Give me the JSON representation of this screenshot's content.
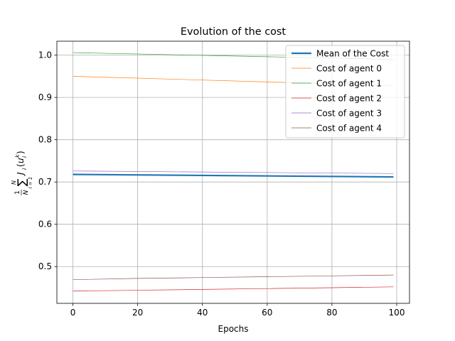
{
  "chart_data": {
    "type": "line",
    "title": "Evolution of the cost",
    "xlabel": "Epochs",
    "ylabel_parts": {
      "frac_num": "1",
      "frac_den": "N",
      "sum_upper": "N",
      "sum_symbol": "∑",
      "sum_lower": "i = 1",
      "function": "J",
      "function_sub": "i",
      "open_paren": "(",
      "argument": "u",
      "argument_sub": "i",
      "argument_sup": "k",
      "close_paren": ")"
    },
    "xlim": [
      -4.95,
      103.95
    ],
    "ylim": [
      0.413,
      1.033
    ],
    "x_ticks": [
      0,
      20,
      40,
      60,
      80,
      100
    ],
    "y_ticks": [
      0.5,
      0.6,
      0.7,
      0.8,
      0.9,
      1.0
    ],
    "y_tick_labels": [
      "0.5",
      "0.6",
      "0.7",
      "0.8",
      "0.9",
      "1.0"
    ],
    "grid": true,
    "legend_position": "top-right",
    "series": [
      {
        "name": "Mean of the Cost",
        "color": "#1f77b4",
        "width": "thick",
        "x": [
          0,
          99
        ],
        "y": [
          0.718,
          0.712
        ]
      },
      {
        "name": "Cost of agent 0",
        "color": "#ff7f0e",
        "width": "thin",
        "x": [
          0,
          99
        ],
        "y": [
          0.95,
          0.928
        ]
      },
      {
        "name": "Cost of agent 1",
        "color": "#2ca02c",
        "width": "thin",
        "x": [
          0,
          99
        ],
        "y": [
          1.006,
          0.99
        ]
      },
      {
        "name": "Cost of agent 2",
        "color": "#d62728",
        "width": "thin",
        "x": [
          0,
          20,
          40,
          60,
          80,
          99
        ],
        "y": [
          0.442,
          0.444,
          0.446,
          0.448,
          0.45,
          0.452
        ]
      },
      {
        "name": "Cost of agent 3",
        "color": "#9467bd",
        "width": "thin",
        "x": [
          0,
          99
        ],
        "y": [
          0.726,
          0.72
        ]
      },
      {
        "name": "Cost of agent 4",
        "color": "#8c564b",
        "width": "thin",
        "x": [
          0,
          20,
          40,
          60,
          80,
          99
        ],
        "y": [
          0.469,
          0.472,
          0.474,
          0.476,
          0.478,
          0.48
        ]
      }
    ]
  }
}
